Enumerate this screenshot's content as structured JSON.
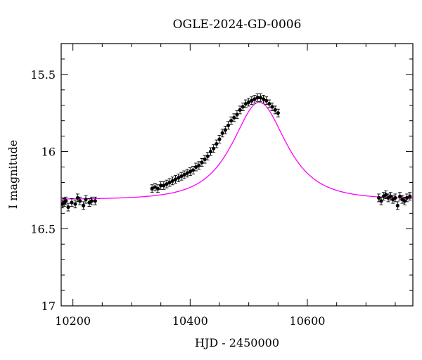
{
  "chart_data": {
    "type": "scatter",
    "title": "OGLE-2024-GD-0006",
    "xlabel": "HJD - 2450000",
    "ylabel": "I magnitude",
    "xlim": [
      10180,
      10780
    ],
    "ylim": [
      17.0,
      15.3
    ],
    "y_inverted": true,
    "grid": false,
    "x_major_ticks": [
      10200,
      10400,
      10600
    ],
    "x_minor_step": 50,
    "y_major_ticks": [
      15.5,
      16.0,
      16.5,
      17.0
    ],
    "y_tick_labels": [
      "15.5",
      "16",
      "16.5",
      "17"
    ],
    "y_minor_step": 0.1,
    "colors": {
      "points": "#000000",
      "model": "#ff00ff"
    },
    "series": [
      {
        "kind": "observations",
        "x": [
          10182,
          10185,
          10188,
          10192,
          10198,
          10204,
          10208,
          10212,
          10218,
          10222,
          10228,
          10232,
          10238,
          10335,
          10340,
          10345,
          10350,
          10355,
          10360,
          10365,
          10370,
          10375,
          10380,
          10385,
          10390,
          10395,
          10400,
          10405,
          10410,
          10415,
          10420,
          10425,
          10430,
          10435,
          10440,
          10445,
          10450,
          10455,
          10460,
          10465,
          10470,
          10475,
          10480,
          10485,
          10490,
          10495,
          10500,
          10505,
          10510,
          10515,
          10520,
          10525,
          10530,
          10535,
          10540,
          10545,
          10550,
          10722,
          10726,
          10730,
          10734,
          10738,
          10742,
          10746,
          10750,
          10754,
          10758,
          10762,
          10766,
          10770,
          10775
        ],
        "y": [
          16.34,
          16.33,
          16.32,
          16.36,
          16.33,
          16.34,
          16.3,
          16.32,
          16.35,
          16.31,
          16.33,
          16.32,
          16.32,
          16.24,
          16.23,
          16.24,
          16.22,
          16.22,
          16.21,
          16.2,
          16.19,
          16.18,
          16.17,
          16.16,
          16.15,
          16.14,
          16.13,
          16.12,
          16.1,
          16.09,
          16.07,
          16.05,
          16.03,
          16.0,
          15.98,
          15.95,
          15.92,
          15.88,
          15.86,
          15.83,
          15.8,
          15.78,
          15.76,
          15.73,
          15.71,
          15.69,
          15.68,
          15.67,
          15.66,
          15.65,
          15.65,
          15.66,
          15.67,
          15.69,
          15.71,
          15.73,
          15.75,
          16.3,
          16.32,
          16.29,
          16.28,
          16.3,
          16.29,
          16.31,
          16.3,
          16.35,
          16.29,
          16.31,
          16.32,
          16.3,
          16.29
        ],
        "err": 0.025
      },
      {
        "kind": "model",
        "t0": 10518,
        "peak_mag": 15.68,
        "baseline_mag": 16.31,
        "tE": 62,
        "u0": 0.75
      }
    ]
  }
}
